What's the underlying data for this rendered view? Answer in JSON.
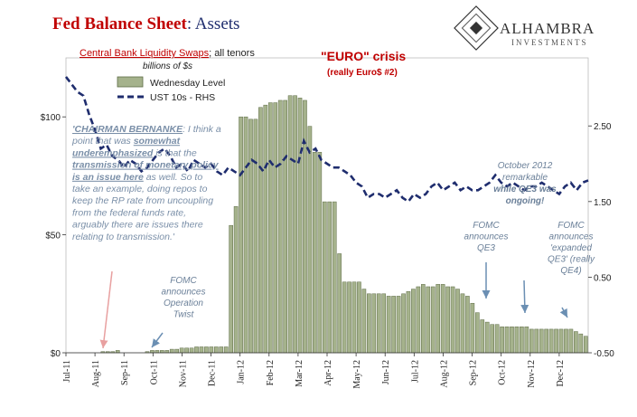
{
  "title": {
    "part1": "Fed Balance Sheet",
    "part2": ": Assets"
  },
  "subtitle": {
    "series_label": "Central Bank Liquidity Swaps",
    "series_suffix": "; all tenors",
    "units": "billions of $s"
  },
  "logo": {
    "name": "ALHAMBRA",
    "tagline": "INVESTMENTS"
  },
  "headline": {
    "main": "\"EURO\" crisis",
    "sub": "(really Euro$ #2)"
  },
  "legend": {
    "bar_label": "Wednesday Level",
    "line_label": "UST 10s - RHS"
  },
  "quote": {
    "lines": [
      "'CHAIRMAN BERNANKE: I think a",
      "point that was somewhat",
      "underemphasized is that the",
      "transmission of monetary policy",
      "is an issue here as well. So to",
      "take an example, doing repos to",
      "keep the RP rate from uncoupling",
      "from the federal funds rate,",
      "arguably there are issues there",
      "relating to transmission.'"
    ]
  },
  "annotations": {
    "operation_twist": [
      "FOMC",
      "announces",
      "Operation",
      "Twist"
    ],
    "qe3": [
      "FOMC",
      "announces",
      "QE3"
    ],
    "qe4": [
      "FOMC",
      "announces",
      "'expanded",
      "QE3' (really",
      "QE4)"
    ],
    "october_2012": [
      "October 2012",
      "remarkable",
      "while QE3 was",
      "ongoing!"
    ]
  },
  "colors": {
    "bar_fill": "#a5b28c",
    "bar_stroke": "#5d6b45",
    "line": "#1f2d6e",
    "arrow_blue": "#6b8fb3",
    "arrow_pink": "#e8a0a0",
    "title_red": "#c00000"
  },
  "chart_data": {
    "type": "bar",
    "left_axis": {
      "min": 0,
      "max": 125,
      "tick_values": [
        0,
        50,
        100
      ],
      "tick_labels": [
        "$0",
        "$50",
        "$100"
      ]
    },
    "right_axis": {
      "min": -0.5,
      "max": 3.4,
      "tick_values": [
        -0.5,
        0.5,
        1.5,
        2.5
      ],
      "tick_labels": [
        "-0.50",
        "0.50",
        "1.50",
        "2.50"
      ]
    },
    "x_tick_labels": [
      "Jul-11",
      "Aug-11",
      "Sep-11",
      "Oct-11",
      "Nov-11",
      "Dec-11",
      "Jan-12",
      "Feb-12",
      "Mar-12",
      "Apr-12",
      "May-12",
      "Jun-12",
      "Jul-12",
      "Aug-12",
      "Sep-12",
      "Oct-12",
      "Nov-12",
      "Dec-12"
    ],
    "bars_start": "Jul-11",
    "bars_per_month": 4.3,
    "series": [
      {
        "name": "Wednesday Level",
        "values": [
          0,
          0,
          0,
          0,
          0,
          0,
          0,
          0.5,
          0.5,
          0.5,
          1,
          0,
          0,
          0,
          0,
          0,
          0.5,
          1,
          1,
          1,
          1,
          1.5,
          1.5,
          2,
          2,
          2,
          2.5,
          2.5,
          2.5,
          2.5,
          2.5,
          2.5,
          2.5,
          54,
          62,
          100,
          100,
          99,
          99,
          104,
          105,
          106,
          106,
          107,
          107,
          109,
          109,
          108,
          107,
          96,
          85,
          85,
          64,
          64,
          64,
          42,
          30,
          30,
          30,
          30,
          27,
          25,
          25,
          25,
          25,
          24,
          24,
          24,
          25,
          26,
          27,
          28,
          29,
          28,
          28,
          29,
          29,
          28,
          28,
          27,
          25,
          24,
          21,
          17,
          14,
          13,
          12,
          12,
          11,
          11,
          11,
          11,
          11,
          11,
          10,
          10,
          10,
          10,
          10,
          10,
          10,
          10,
          10,
          9,
          8,
          7
        ]
      },
      {
        "name": "UST 10s - RHS",
        "x": [
          0,
          0.2,
          0.4,
          0.6,
          0.8,
          1.0,
          1.2,
          1.4,
          1.6,
          1.8,
          2.0,
          2.2,
          2.4,
          2.6,
          2.8,
          3.0,
          3.2,
          3.4,
          3.6,
          3.8,
          4.0,
          4.2,
          4.4,
          4.6,
          4.8,
          5.0,
          5.2,
          5.4,
          5.6,
          5.8,
          6.0,
          6.2,
          6.4,
          6.6,
          6.8,
          7.0,
          7.2,
          7.4,
          7.6,
          7.8,
          8.0,
          8.2,
          8.4,
          8.6,
          8.8,
          9.0,
          9.2,
          9.4,
          9.6,
          9.8,
          10.0,
          10.2,
          10.4,
          10.6,
          10.8,
          11.0,
          11.2,
          11.4,
          11.6,
          11.8,
          12.0,
          12.2,
          12.4,
          12.6,
          12.8,
          13.0,
          13.2,
          13.4,
          13.6,
          13.8,
          14.0,
          14.2,
          14.4,
          14.6,
          14.8,
          15.0,
          15.2,
          15.4,
          15.6,
          15.8,
          16.0,
          16.2,
          16.4,
          16.6,
          16.8,
          17.0,
          17.2,
          17.4,
          17.6,
          17.8,
          18.0
        ],
        "values": [
          3.15,
          3.05,
          2.95,
          2.9,
          2.65,
          2.45,
          2.2,
          2.25,
          2.1,
          2.05,
          1.95,
          2.05,
          2.0,
          1.9,
          1.95,
          2.05,
          2.15,
          2.2,
          2.1,
          1.95,
          2.0,
          1.9,
          2.05,
          2.0,
          1.95,
          2.0,
          1.9,
          1.85,
          1.95,
          1.9,
          1.85,
          1.95,
          2.05,
          2.0,
          1.9,
          2.05,
          1.95,
          2.0,
          2.1,
          2.05,
          2.0,
          2.3,
          2.15,
          2.2,
          2.05,
          2.0,
          1.95,
          1.95,
          1.9,
          1.85,
          1.75,
          1.7,
          1.55,
          1.6,
          1.6,
          1.55,
          1.6,
          1.65,
          1.55,
          1.5,
          1.6,
          1.55,
          1.6,
          1.7,
          1.75,
          1.65,
          1.7,
          1.75,
          1.65,
          1.7,
          1.65,
          1.65,
          1.7,
          1.75,
          1.85,
          1.75,
          1.7,
          1.75,
          1.7,
          1.65,
          1.7,
          1.7,
          1.75,
          1.7,
          1.65,
          1.6,
          1.7,
          1.75,
          1.65,
          1.75,
          1.78
        ]
      }
    ]
  }
}
